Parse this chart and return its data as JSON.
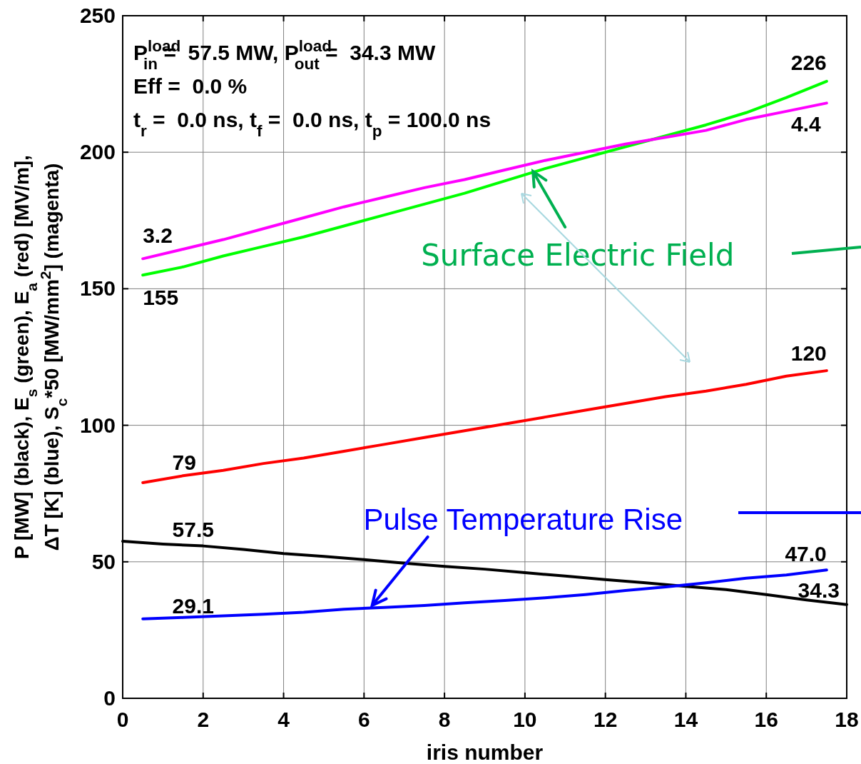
{
  "chart_data": {
    "type": "line",
    "xlabel": "iris number",
    "ylabel": "P [MW] (black), E$_{s}$ (green), E$_{a}$ (red) [MV/m],\nΔT [K] (blue), S$_{c}$*50 [MW/mm$^{2}$] (magenta)",
    "xlim": [
      0,
      18
    ],
    "ylim": [
      0,
      250
    ],
    "xticks": [
      0,
      2,
      4,
      6,
      8,
      10,
      12,
      14,
      16,
      18
    ],
    "yticks": [
      0,
      50,
      100,
      150,
      200,
      250
    ],
    "grid": true,
    "marker": "none",
    "line_style": "solid",
    "x": [
      0.5,
      1.5,
      2.5,
      3.5,
      4.5,
      5.5,
      6.5,
      7.5,
      8.5,
      9.5,
      10.5,
      11.5,
      12.5,
      13.5,
      14.5,
      15.5,
      16.5,
      17.5
    ],
    "series": [
      {
        "color": "#00ff00",
        "values": [
          155,
          158,
          162,
          165.5,
          169,
          173,
          177,
          181,
          185,
          189.5,
          194,
          198,
          202,
          206,
          210,
          214.5,
          220,
          226
        ]
      },
      {
        "color": "#ff00ff",
        "values": [
          161,
          164.5,
          168,
          172,
          176,
          180,
          183.5,
          187,
          190,
          193.5,
          197,
          200,
          203,
          205.5,
          208,
          212,
          215,
          218
        ]
      },
      {
        "color": "#ff0000",
        "values": [
          79,
          81.5,
          83.5,
          86,
          88,
          90.5,
          93,
          95.5,
          98,
          100.5,
          103,
          105.5,
          108,
          110.5,
          112.5,
          115,
          118,
          120
        ]
      },
      {
        "color": "#000000",
        "x": [
          0,
          1,
          2,
          3,
          4,
          5,
          6,
          7,
          8,
          9,
          10,
          11,
          12,
          13,
          14,
          15,
          16,
          17,
          18
        ],
        "values": [
          57.5,
          56.5,
          55.8,
          54.5,
          53,
          52,
          50.8,
          49.5,
          48.3,
          47.3,
          46,
          44.8,
          43.5,
          42.3,
          41,
          39.8,
          38,
          36,
          34.3
        ]
      },
      {
        "color": "#0000ff",
        "values": [
          29.1,
          29.6,
          30.2,
          30.8,
          31.5,
          32.6,
          33.3,
          34,
          35,
          35.8,
          36.8,
          38,
          39.5,
          40.8,
          42.3,
          44,
          45.2,
          47.0
        ]
      }
    ],
    "annotations": [
      "P$^{load}$$_{in}$ =  57.5 MW, P$^{load}$$_{out}$ =  34.3 MW",
      "Eff =  0.0 %",
      "t$_{r}$ =  0.0 ns, t$_{f}$ =  0.0 ns, t$_{p}$ = 100.0 ns",
      {
        "text": "Surface Electric Field",
        "x": 10.2,
        "y": 193
      },
      {
        "text": "Pulse Temperature Rise",
        "x": 6.2,
        "y": 34
      },
      {
        "text": "3.2",
        "x": 0.5,
        "y": 161
      },
      {
        "text": "155",
        "x": 0.5,
        "y": 155
      },
      {
        "text": "226",
        "x": 17.5,
        "y": 226
      },
      {
        "text": "4.4",
        "x": 17.5,
        "y": 218
      },
      {
        "text": "79",
        "x": 1.5,
        "y": 81.5
      },
      {
        "text": "120",
        "x": 17.5,
        "y": 120
      },
      {
        "text": "57.5",
        "x": 1.5,
        "y": 56.5
      },
      {
        "text": "29.1",
        "x": 1.5,
        "y": 29.6
      },
      {
        "text": "47.0",
        "x": 17.5,
        "y": 47.0
      },
      {
        "text": "34.3",
        "x": 18,
        "y": 34.3
      }
    ]
  }
}
